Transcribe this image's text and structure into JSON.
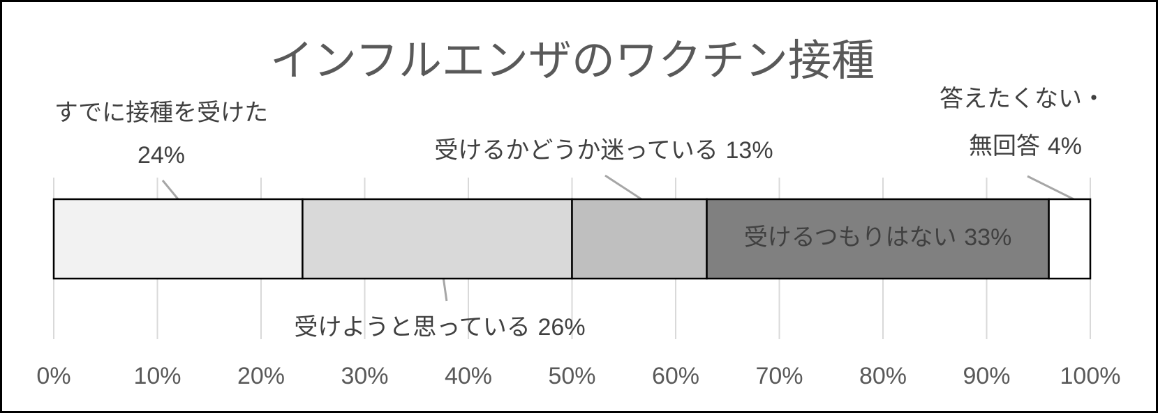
{
  "chart_data": {
    "type": "bar",
    "orientation": "horizontal",
    "stacked": true,
    "title": "インフルエンザのワクチン接種",
    "xlim": [
      0,
      100
    ],
    "x_ticks": [
      "0%",
      "10%",
      "20%",
      "30%",
      "40%",
      "50%",
      "60%",
      "70%",
      "80%",
      "90%",
      "100%"
    ],
    "grid": true,
    "series": [
      {
        "name": "すでに接種を受けた",
        "value": 24,
        "value_label": "24%",
        "color": "#f2f2f2"
      },
      {
        "name": "受けようと思っている",
        "value": 26,
        "value_label": "26%",
        "color": "#d9d9d9"
      },
      {
        "name": "受けるかどうか迷っている",
        "value": 13,
        "value_label": "13%",
        "color": "#bfbfbf"
      },
      {
        "name": "受けるつもりはない",
        "value": 33,
        "value_label": "33%",
        "color": "#808080"
      },
      {
        "name_lines": [
          "答えたくない・",
          "無回答"
        ],
        "value": 4,
        "value_label": "4%",
        "color": "#ffffff"
      }
    ]
  },
  "colors": {
    "axis_text": "#595959",
    "label_text": "#404040",
    "gridline": "#d9d9d9",
    "leader_line": "#a6a6a6",
    "bar_outline": "#000000",
    "inside_label": "#ffffff"
  }
}
